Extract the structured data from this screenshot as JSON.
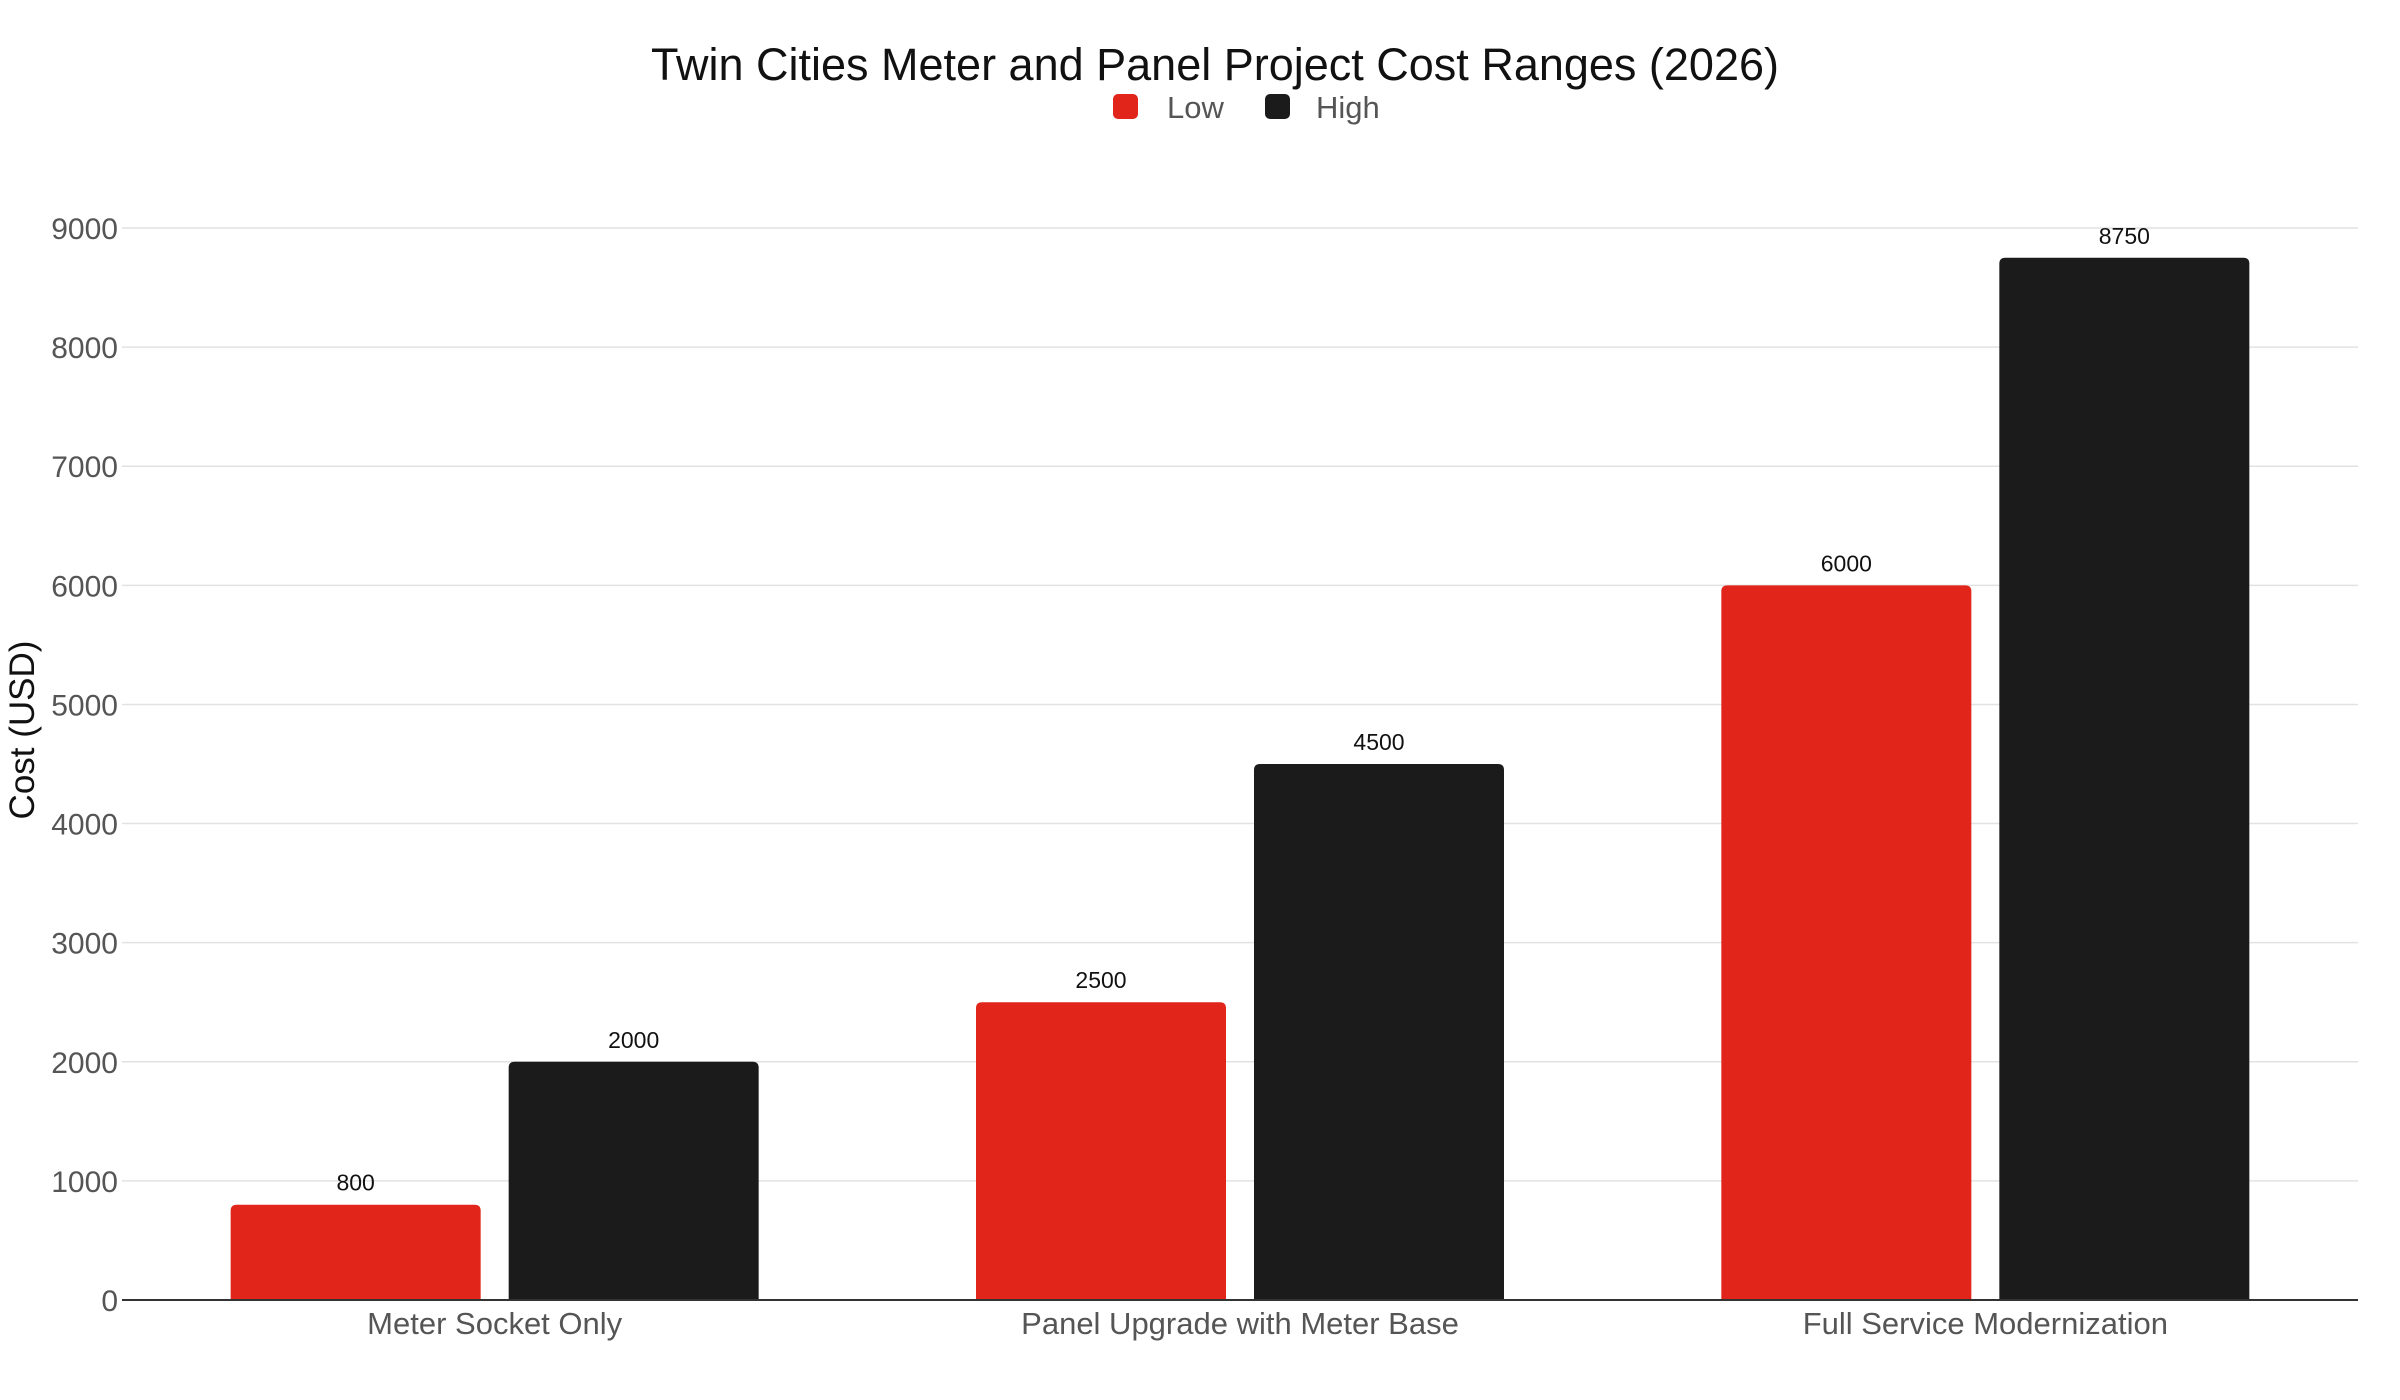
{
  "chart_data": {
    "type": "bar",
    "title": "Twin Cities Meter and Panel Project Cost Ranges (2026)",
    "xlabel": "",
    "ylabel": "Cost (USD)",
    "categories": [
      "Meter Socket Only",
      "Panel Upgrade with Meter Base",
      "Full Service Modernization"
    ],
    "series": [
      {
        "name": "Low",
        "values": [
          800,
          2500,
          6000
        ],
        "color": "#e1251b"
      },
      {
        "name": "High",
        "values": [
          2000,
          4500,
          8750
        ],
        "color": "#1b1b1b"
      }
    ],
    "ylim": [
      0,
      9000
    ],
    "yticks": [
      0,
      1000,
      2000,
      3000,
      4000,
      5000,
      6000,
      7000,
      8000,
      9000
    ],
    "grid": true,
    "legend_position": "top-center",
    "data_labels": true
  }
}
